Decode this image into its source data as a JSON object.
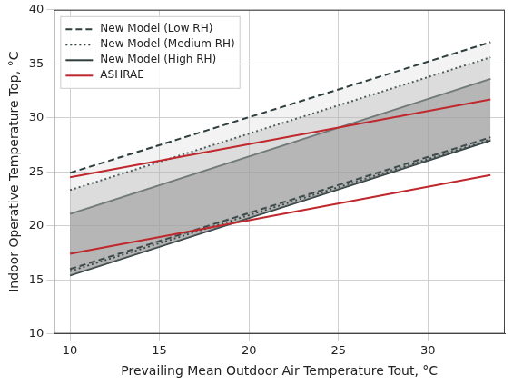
{
  "chart_data": {
    "type": "line",
    "x_label": "Prevailing Mean Outdoor Air Temperature Tout, °C",
    "y_label": "Indoor Operative Temperature Top, °C",
    "x": [
      10,
      33.5
    ],
    "series": [
      {
        "name": "New Model (Low RH)",
        "type": "area",
        "color": "#2f3e3e",
        "line_style": "dashed",
        "values": [
          24.9,
          37.0
        ],
        "lower_values": [
          16.0,
          28.2
        ]
      },
      {
        "name": "New Model (Medium RH)",
        "type": "area",
        "color": "#2f3e3e",
        "line_style": "dotted",
        "values": [
          23.3,
          35.6
        ],
        "lower_values": [
          15.8,
          28.0
        ]
      },
      {
        "name": "New Model (High RH)",
        "type": "area",
        "color": "#2f3e3e",
        "line_style": "solid",
        "values": [
          21.1,
          33.6
        ],
        "lower_values": [
          15.4,
          27.9
        ]
      },
      {
        "name": "ASHRAE",
        "type": "line",
        "color": "#c0282d",
        "line_style": "solid",
        "values": [
          24.5,
          31.7
        ],
        "lower_values": [
          17.4,
          24.7
        ]
      }
    ],
    "xlim": [
      9.1,
      34.3
    ],
    "xticks": [
      10,
      15,
      20,
      25,
      30
    ],
    "ylim": [
      10,
      40
    ],
    "yticks": [
      10,
      15,
      20,
      25,
      30,
      35,
      40
    ],
    "grid": true,
    "legend": "upper left"
  }
}
